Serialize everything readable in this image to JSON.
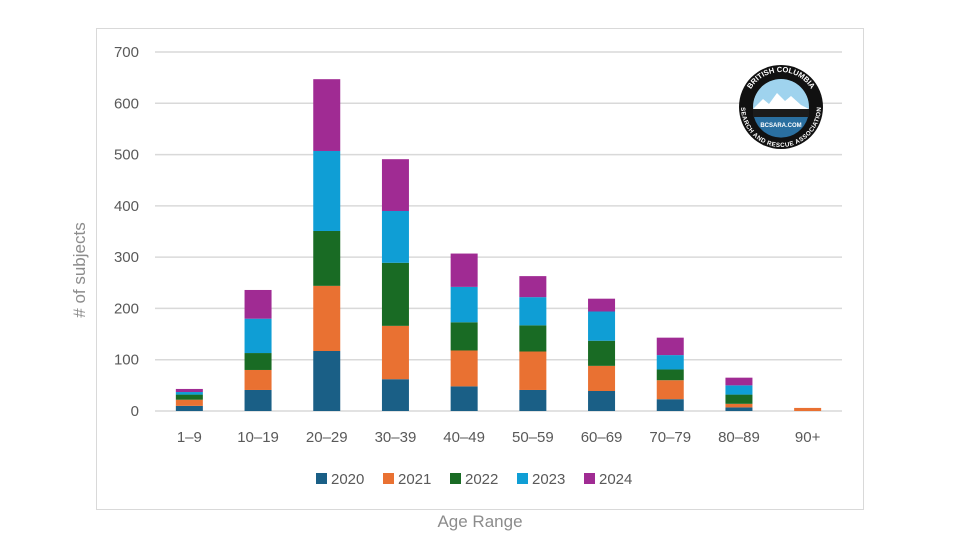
{
  "chart_data": {
    "type": "bar",
    "stacked": true,
    "title": "",
    "xlabel": "Age Range",
    "ylabel": "# of subjects",
    "ylim": [
      0,
      700
    ],
    "yticks": [
      0,
      100,
      200,
      300,
      400,
      500,
      600,
      700
    ],
    "grid": true,
    "legend_position": "bottom",
    "categories": [
      "1–9",
      "10–19",
      "20–29",
      "30–39",
      "40–49",
      "50–59",
      "60–69",
      "70–79",
      "80–89",
      "90+"
    ],
    "series": [
      {
        "name": "2020",
        "color": "#1a5f86",
        "values": [
          10,
          41,
          117,
          62,
          48,
          41,
          39,
          23,
          7,
          0
        ]
      },
      {
        "name": "2021",
        "color": "#e97132",
        "values": [
          12,
          39,
          127,
          104,
          70,
          75,
          49,
          37,
          7,
          6
        ]
      },
      {
        "name": "2022",
        "color": "#196b24",
        "values": [
          10,
          33,
          107,
          123,
          55,
          51,
          49,
          21,
          18,
          0
        ]
      },
      {
        "name": "2023",
        "color": "#0f9ed5",
        "values": [
          5,
          67,
          156,
          101,
          69,
          55,
          57,
          28,
          18,
          0
        ]
      },
      {
        "name": "2024",
        "color": "#a02b93",
        "values": [
          6,
          56,
          140,
          101,
          65,
          41,
          25,
          34,
          15,
          0
        ]
      }
    ]
  },
  "logo": {
    "top_text": "BRITISH COLUMBIA",
    "center_text": "BCSARA.COM",
    "bottom_text": "SEARCH AND RESCUE ASSOCIATION"
  }
}
